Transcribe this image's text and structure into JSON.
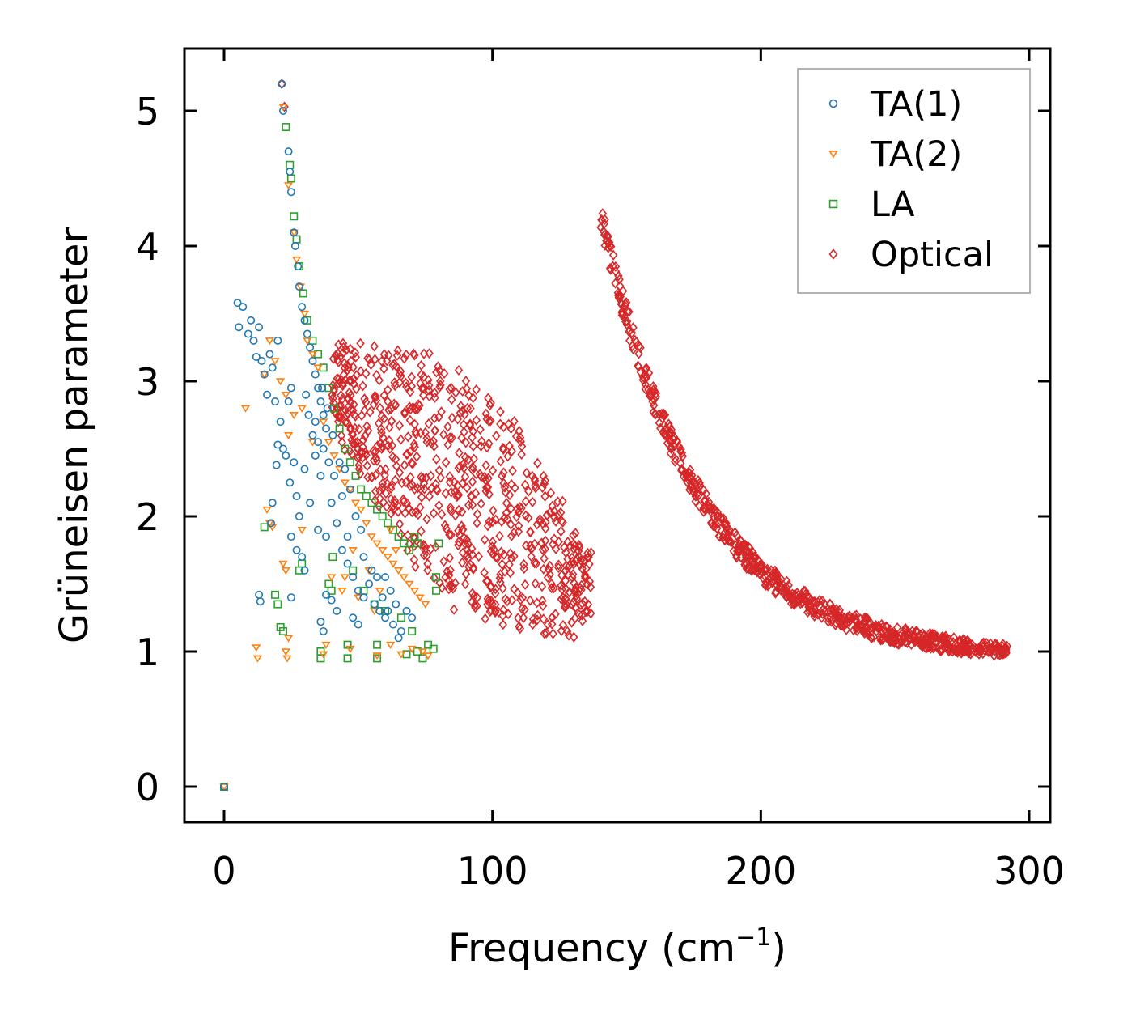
{
  "chart_data": {
    "type": "scatter",
    "title": "",
    "xlabel": "Frequency (cm",
    "xlabel_unit_sup": "−1",
    "xlabel_suffix": ")",
    "ylabel": "Grüneisen parameter",
    "xlim": [
      -15,
      307
    ],
    "ylim": [
      -0.25,
      5.47
    ],
    "x_ticks": [
      0,
      100,
      200,
      300
    ],
    "x_tick_labels": [
      "0",
      "100",
      "200",
      "300"
    ],
    "y_ticks": [
      0,
      1,
      2,
      3,
      4,
      5
    ],
    "y_tick_labels": [
      "0",
      "1",
      "2",
      "3",
      "4",
      "5"
    ],
    "grid": false,
    "legend_position": "top-right",
    "series": [
      {
        "name": "TA(1)",
        "color": "#1f77b4",
        "marker": "circle",
        "points": [
          [
            0,
            0
          ],
          [
            21.5,
            5.2
          ],
          [
            22,
            5.0
          ],
          [
            24,
            4.7
          ],
          [
            24.5,
            4.55
          ],
          [
            25,
            4.4
          ],
          [
            26,
            4.1
          ],
          [
            26.5,
            4.0
          ],
          [
            27.5,
            3.85
          ],
          [
            28,
            3.7
          ],
          [
            29,
            3.55
          ],
          [
            30,
            3.45
          ],
          [
            31,
            3.35
          ],
          [
            32,
            3.25
          ],
          [
            33,
            3.15
          ],
          [
            34,
            3.05
          ],
          [
            35,
            2.95
          ],
          [
            36,
            2.85
          ],
          [
            37,
            2.75
          ],
          [
            38,
            2.65
          ],
          [
            5,
            3.58
          ],
          [
            5.5,
            3.4
          ],
          [
            7,
            3.55
          ],
          [
            9,
            3.35
          ],
          [
            10,
            3.45
          ],
          [
            11,
            3.3
          ],
          [
            12,
            3.18
          ],
          [
            13,
            3.4
          ],
          [
            14,
            3.15
          ],
          [
            15,
            3.05
          ],
          [
            16,
            2.9
          ],
          [
            17,
            3.2
          ],
          [
            18,
            3.1
          ],
          [
            19,
            2.85
          ],
          [
            20,
            3.3
          ],
          [
            21,
            2.7
          ],
          [
            22,
            2.5
          ],
          [
            23,
            2.45
          ],
          [
            24,
            2.85
          ],
          [
            25,
            2.95
          ],
          [
            19.5,
            2.38
          ],
          [
            20,
            2.53
          ],
          [
            24.5,
            2.25
          ],
          [
            26,
            2.4
          ],
          [
            27,
            2.15
          ],
          [
            28,
            2.0
          ],
          [
            30,
            2.35
          ],
          [
            32,
            2.1
          ],
          [
            34,
            2.45
          ],
          [
            36,
            2.3
          ],
          [
            18,
            2.1
          ],
          [
            17.5,
            1.95
          ],
          [
            25,
            1.85
          ],
          [
            27,
            1.75
          ],
          [
            29,
            1.7
          ],
          [
            30,
            1.6
          ],
          [
            35,
            1.9
          ],
          [
            38,
            1.85
          ],
          [
            40,
            2.1
          ],
          [
            42,
            1.95
          ],
          [
            44,
            1.75
          ],
          [
            46,
            1.65
          ],
          [
            48,
            1.55
          ],
          [
            50,
            1.45
          ],
          [
            52,
            1.4
          ],
          [
            54,
            1.5
          ],
          [
            56,
            1.35
          ],
          [
            58,
            1.3
          ],
          [
            60,
            1.55
          ],
          [
            62,
            1.45
          ],
          [
            13,
            1.42
          ],
          [
            13.5,
            1.37
          ],
          [
            25,
            1.4
          ],
          [
            36,
            1.22
          ],
          [
            37,
            1.15
          ],
          [
            38,
            1.42
          ],
          [
            40,
            1.38
          ],
          [
            42,
            1.3
          ],
          [
            48,
            1.25
          ],
          [
            50,
            1.2
          ],
          [
            60,
            1.25
          ],
          [
            64,
            1.35
          ],
          [
            66,
            1.15
          ],
          [
            68,
            1.3
          ],
          [
            70,
            1.25
          ],
          [
            43,
            2.4
          ],
          [
            45,
            2.35
          ],
          [
            47,
            2.2
          ],
          [
            49,
            2.0
          ],
          [
            51,
            1.9
          ],
          [
            33,
            2.6
          ],
          [
            34,
            2.7
          ],
          [
            35,
            2.55
          ],
          [
            37,
            2.5
          ],
          [
            39,
            2.4
          ],
          [
            41,
            2.3
          ],
          [
            36.5,
            2.95
          ],
          [
            38.5,
            2.8
          ],
          [
            40.5,
            2.6
          ],
          [
            44,
            2.15
          ],
          [
            46,
            1.85
          ],
          [
            52,
            1.7
          ],
          [
            55,
            1.6
          ],
          [
            57,
            1.55
          ],
          [
            59,
            1.4
          ],
          [
            61,
            1.3
          ],
          [
            63,
            1.2
          ],
          [
            65,
            1.1
          ],
          [
            30.5,
            2.9
          ],
          [
            31.5,
            2.75
          ]
        ]
      },
      {
        "name": "TA(2)",
        "color": "#ff7f0e",
        "marker": "triangle-down",
        "points": [
          [
            0,
            0
          ],
          [
            22,
            5.03
          ],
          [
            24,
            4.45
          ],
          [
            26,
            4.1
          ],
          [
            27,
            3.9
          ],
          [
            28.5,
            3.7
          ],
          [
            30,
            3.5
          ],
          [
            31,
            3.3
          ],
          [
            33,
            3.2
          ],
          [
            35,
            3.1
          ],
          [
            8,
            2.8
          ],
          [
            15,
            3.05
          ],
          [
            17,
            3.3
          ],
          [
            19,
            3.15
          ],
          [
            21,
            3.0
          ],
          [
            23,
            2.9
          ],
          [
            24,
            2.6
          ],
          [
            26,
            2.75
          ],
          [
            29,
            2.8
          ],
          [
            33,
            2.55
          ],
          [
            37,
            2.7
          ],
          [
            39,
            2.55
          ],
          [
            41,
            2.45
          ],
          [
            43,
            2.35
          ],
          [
            45,
            2.25
          ],
          [
            47,
            2.2
          ],
          [
            49,
            2.1
          ],
          [
            51,
            2.05
          ],
          [
            53,
            1.95
          ],
          [
            55,
            1.85
          ],
          [
            57,
            1.8
          ],
          [
            59,
            1.75
          ],
          [
            61,
            1.7
          ],
          [
            63,
            1.65
          ],
          [
            65,
            1.6
          ],
          [
            67,
            1.55
          ],
          [
            69,
            1.5
          ],
          [
            71,
            1.45
          ],
          [
            73,
            1.4
          ],
          [
            75,
            1.35
          ],
          [
            16,
            2.05
          ],
          [
            17,
            1.95
          ],
          [
            18,
            1.92
          ],
          [
            22,
            1.65
          ],
          [
            23,
            1.6
          ],
          [
            29,
            1.9
          ],
          [
            40,
            1.55
          ],
          [
            44,
            1.45
          ],
          [
            50,
            1.4
          ],
          [
            56,
            1.3
          ],
          [
            12,
            1.03
          ],
          [
            12.5,
            0.95
          ],
          [
            23,
            1.0
          ],
          [
            23.5,
            0.95
          ],
          [
            24,
            1.1
          ],
          [
            37,
            0.98
          ],
          [
            38,
            1.05
          ],
          [
            47,
            1.02
          ],
          [
            57,
            0.97
          ],
          [
            62,
            1.05
          ],
          [
            66,
            0.98
          ],
          [
            70,
            1.02
          ],
          [
            74,
            1.0
          ],
          [
            76,
            0.97
          ],
          [
            45,
            1.55
          ],
          [
            48,
            1.75
          ],
          [
            54,
            1.6
          ],
          [
            58,
            1.45
          ],
          [
            62,
            1.9
          ],
          [
            64,
            1.75
          ]
        ]
      },
      {
        "name": "LA",
        "color": "#2ca02c",
        "marker": "square",
        "points": [
          [
            0,
            0
          ],
          [
            23,
            4.88
          ],
          [
            24.5,
            4.6
          ],
          [
            25,
            4.5
          ],
          [
            26,
            4.22
          ],
          [
            27,
            4.05
          ],
          [
            28,
            3.85
          ],
          [
            29.5,
            3.65
          ],
          [
            31,
            3.45
          ],
          [
            33,
            3.3
          ],
          [
            35,
            3.2
          ],
          [
            37,
            3.1
          ],
          [
            39,
            2.95
          ],
          [
            41,
            2.8
          ],
          [
            43,
            2.65
          ],
          [
            45,
            2.5
          ],
          [
            47,
            2.4
          ],
          [
            49,
            2.3
          ],
          [
            51,
            2.2
          ],
          [
            53,
            2.15
          ],
          [
            55,
            2.1
          ],
          [
            57,
            2.05
          ],
          [
            59,
            2.0
          ],
          [
            61,
            1.95
          ],
          [
            63,
            1.9
          ],
          [
            65,
            1.85
          ],
          [
            67,
            1.8
          ],
          [
            69,
            1.75
          ],
          [
            71,
            1.85
          ],
          [
            72,
            1.8
          ],
          [
            15,
            1.92
          ],
          [
            19,
            1.42
          ],
          [
            20,
            1.35
          ],
          [
            21,
            1.18
          ],
          [
            22,
            1.15
          ],
          [
            28,
            1.6
          ],
          [
            29,
            1.65
          ],
          [
            39,
            1.5
          ],
          [
            40,
            1.45
          ],
          [
            40.5,
            1.7
          ],
          [
            36,
            1.0
          ],
          [
            36,
            0.95
          ],
          [
            46,
            1.05
          ],
          [
            46,
            0.95
          ],
          [
            57,
            0.95
          ],
          [
            57,
            1.05
          ],
          [
            68,
            0.98
          ],
          [
            72,
            1.0
          ],
          [
            74,
            0.95
          ],
          [
            76,
            1.05
          ],
          [
            78,
            1.02
          ],
          [
            79,
            1.45
          ],
          [
            79,
            1.55
          ],
          [
            80,
            1.8
          ],
          [
            48,
            1.6
          ],
          [
            52,
            1.45
          ],
          [
            56,
            1.35
          ],
          [
            60,
            1.3
          ],
          [
            66,
            1.25
          ],
          [
            70,
            1.15
          ]
        ]
      },
      {
        "name": "Optical",
        "color": "#d62728",
        "marker": "diamond",
        "points": []
      }
    ]
  },
  "legend": {
    "items": [
      "TA(1)",
      "TA(2)",
      "LA",
      "Optical"
    ]
  }
}
